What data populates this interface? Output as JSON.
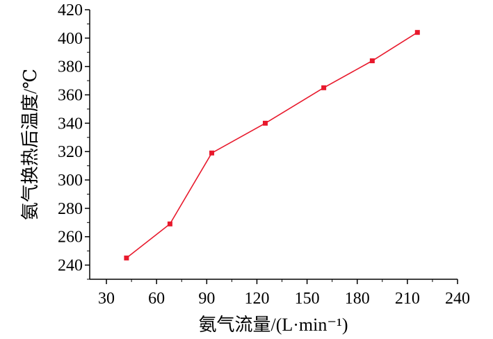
{
  "chart_data": {
    "type": "line",
    "xlabel": "氨气流量/(L·min⁻¹)",
    "ylabel": "氨气换热后温度/℃",
    "xlim": [
      20,
      240
    ],
    "ylim": [
      230,
      420
    ],
    "xticks": [
      30,
      60,
      90,
      120,
      150,
      180,
      210,
      240
    ],
    "yticks": [
      240,
      260,
      280,
      300,
      320,
      340,
      360,
      380,
      400,
      420
    ],
    "grid": false,
    "colors": {
      "line": "#e8192c",
      "marker": "#e8192c"
    },
    "series": [
      {
        "x": [
          42,
          68,
          93,
          125,
          160,
          189,
          216
        ],
        "y": [
          245,
          269,
          319,
          340,
          365,
          384,
          404
        ]
      }
    ]
  }
}
